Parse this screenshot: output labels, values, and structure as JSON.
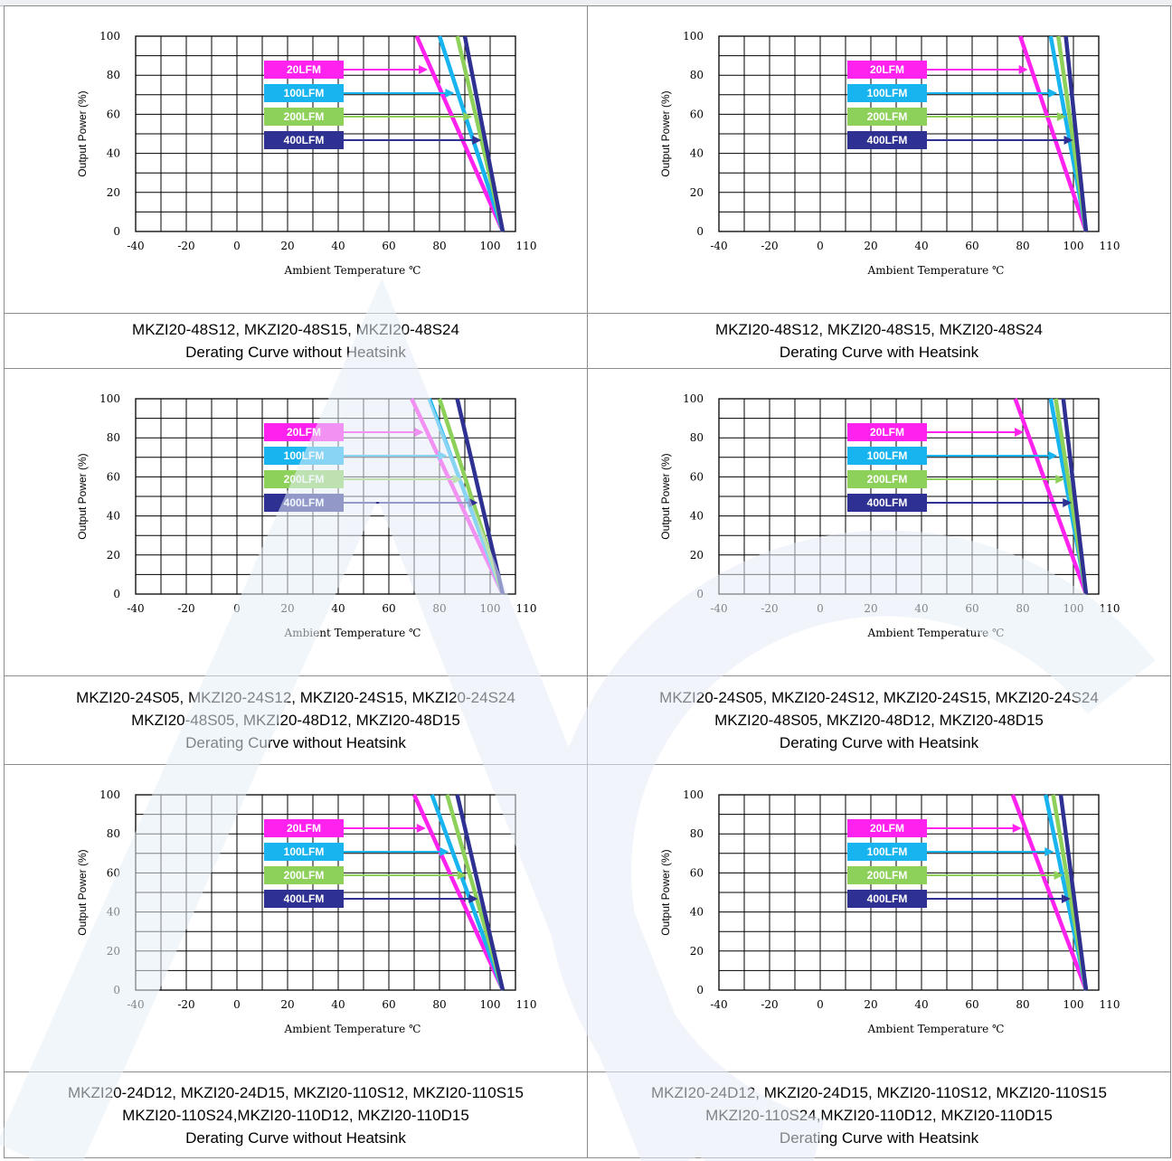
{
  "colors": {
    "20LFM": "#ff22ee",
    "100LFM": "#17b4ef",
    "200LFM": "#8dd05a",
    "400LFM": "#2e3191"
  },
  "chart_data": [
    {
      "type": "line",
      "title": "",
      "xlabel": "Ambient Temperature ℃",
      "ylabel": "Output Power (%)",
      "x_ticks": [
        "-40",
        "-20",
        "0",
        "20",
        "40",
        "60",
        "80",
        "100",
        "110"
      ],
      "y_ticks": [
        "0",
        "20",
        "40",
        "60",
        "80",
        "100"
      ],
      "xlim": [
        -40,
        110
      ],
      "ylim": [
        0,
        100
      ],
      "grid": true,
      "legend_position": "top-center",
      "series": [
        {
          "name": "20LFM",
          "color": "#ff22ee",
          "points": [
            [
              71,
              100
            ],
            [
              105,
              0
            ]
          ]
        },
        {
          "name": "100LFM",
          "color": "#17b4ef",
          "points": [
            [
              80,
              100
            ],
            [
              105,
              0
            ]
          ]
        },
        {
          "name": "200LFM",
          "color": "#8dd05a",
          "points": [
            [
              87,
              100
            ],
            [
              105,
              0
            ]
          ]
        },
        {
          "name": "400LFM",
          "color": "#2e3191",
          "points": [
            [
              90,
              100
            ],
            [
              105,
              0
            ]
          ]
        }
      ]
    },
    {
      "type": "line",
      "title": "",
      "xlabel": "Ambient Temperature ℃",
      "ylabel": "Output Power (%)",
      "x_ticks": [
        "-40",
        "-20",
        "0",
        "20",
        "40",
        "60",
        "80",
        "100",
        "110"
      ],
      "y_ticks": [
        "0",
        "20",
        "40",
        "60",
        "80",
        "100"
      ],
      "xlim": [
        -40,
        110
      ],
      "ylim": [
        0,
        100
      ],
      "grid": true,
      "legend_position": "top-center",
      "series": [
        {
          "name": "20LFM",
          "color": "#ff22ee",
          "points": [
            [
              79,
              100
            ],
            [
              105,
              0
            ]
          ]
        },
        {
          "name": "100LFM",
          "color": "#17b4ef",
          "points": [
            [
              91,
              100
            ],
            [
              105,
              0
            ]
          ]
        },
        {
          "name": "200LFM",
          "color": "#8dd05a",
          "points": [
            [
              94,
              100
            ],
            [
              105,
              0
            ]
          ]
        },
        {
          "name": "400LFM",
          "color": "#2e3191",
          "points": [
            [
              97,
              100
            ],
            [
              105,
              0
            ]
          ]
        }
      ]
    },
    {
      "type": "line",
      "title": "",
      "xlabel": "Ambient Temperature ℃",
      "ylabel": "Output Power (%)",
      "x_ticks": [
        "-40",
        "-20",
        "0",
        "20",
        "40",
        "60",
        "80",
        "100",
        "110"
      ],
      "y_ticks": [
        "0",
        "20",
        "40",
        "60",
        "80",
        "100"
      ],
      "xlim": [
        -40,
        110
      ],
      "ylim": [
        0,
        100
      ],
      "grid": true,
      "legend_position": "top-center",
      "series": [
        {
          "name": "20LFM",
          "color": "#ff22ee",
          "points": [
            [
              69,
              100
            ],
            [
              105,
              0
            ]
          ]
        },
        {
          "name": "100LFM",
          "color": "#17b4ef",
          "points": [
            [
              76,
              100
            ],
            [
              105,
              0
            ]
          ]
        },
        {
          "name": "200LFM",
          "color": "#8dd05a",
          "points": [
            [
              80,
              100
            ],
            [
              105,
              0
            ]
          ]
        },
        {
          "name": "400LFM",
          "color": "#2e3191",
          "points": [
            [
              87,
              100
            ],
            [
              105,
              0
            ]
          ]
        }
      ]
    },
    {
      "type": "line",
      "title": "",
      "xlabel": "Ambient Temperature ℃",
      "ylabel": "Output Power (%)",
      "x_ticks": [
        "-40",
        "-20",
        "0",
        "20",
        "40",
        "60",
        "80",
        "100",
        "110"
      ],
      "y_ticks": [
        "0",
        "20",
        "40",
        "60",
        "80",
        "100"
      ],
      "xlim": [
        -40,
        110
      ],
      "ylim": [
        0,
        100
      ],
      "grid": true,
      "legend_position": "top-center",
      "series": [
        {
          "name": "20LFM",
          "color": "#ff22ee",
          "points": [
            [
              77,
              100
            ],
            [
              105,
              0
            ]
          ]
        },
        {
          "name": "100LFM",
          "color": "#17b4ef",
          "points": [
            [
              91,
              100
            ],
            [
              105,
              0
            ]
          ]
        },
        {
          "name": "200LFM",
          "color": "#8dd05a",
          "points": [
            [
              93,
              100
            ],
            [
              105,
              0
            ]
          ]
        },
        {
          "name": "400LFM",
          "color": "#2e3191",
          "points": [
            [
              96,
              100
            ],
            [
              105,
              0
            ]
          ]
        }
      ]
    },
    {
      "type": "line",
      "title": "",
      "xlabel": "Ambient Temperature ℃",
      "ylabel": "Output Power (%)",
      "x_ticks": [
        "-40",
        "-20",
        "0",
        "20",
        "40",
        "60",
        "80",
        "100",
        "110"
      ],
      "y_ticks": [
        "0",
        "20",
        "40",
        "60",
        "80",
        "100"
      ],
      "xlim": [
        -40,
        110
      ],
      "ylim": [
        0,
        100
      ],
      "grid": true,
      "legend_position": "top-center",
      "series": [
        {
          "name": "20LFM",
          "color": "#ff22ee",
          "points": [
            [
              70,
              100
            ],
            [
              105,
              0
            ]
          ]
        },
        {
          "name": "100LFM",
          "color": "#17b4ef",
          "points": [
            [
              77,
              100
            ],
            [
              105,
              0
            ]
          ]
        },
        {
          "name": "200LFM",
          "color": "#8dd05a",
          "points": [
            [
              83,
              100
            ],
            [
              105,
              0
            ]
          ]
        },
        {
          "name": "400LFM",
          "color": "#2e3191",
          "points": [
            [
              87,
              100
            ],
            [
              105,
              0
            ]
          ]
        }
      ]
    },
    {
      "type": "line",
      "title": "",
      "xlabel": "Ambient Temperature ℃",
      "ylabel": "Output Power (%)",
      "x_ticks": [
        "-40",
        "-20",
        "0",
        "20",
        "40",
        "60",
        "80",
        "100",
        "110"
      ],
      "y_ticks": [
        "0",
        "20",
        "40",
        "60",
        "80",
        "100"
      ],
      "xlim": [
        -40,
        110
      ],
      "ylim": [
        0,
        100
      ],
      "grid": true,
      "legend_position": "top-center",
      "series": [
        {
          "name": "20LFM",
          "color": "#ff22ee",
          "points": [
            [
              76,
              100
            ],
            [
              105,
              0
            ]
          ]
        },
        {
          "name": "100LFM",
          "color": "#17b4ef",
          "points": [
            [
              89,
              100
            ],
            [
              105,
              0
            ]
          ]
        },
        {
          "name": "200LFM",
          "color": "#8dd05a",
          "points": [
            [
              92,
              100
            ],
            [
              105,
              0
            ]
          ]
        },
        {
          "name": "400LFM",
          "color": "#2e3191",
          "points": [
            [
              95,
              100
            ],
            [
              105,
              0
            ]
          ]
        }
      ]
    }
  ],
  "captions": [
    [
      "MKZI20-48S12, MKZI20-48S15, MKZI20-48S24",
      "Derating Curve without Heatsink"
    ],
    [
      "MKZI20-48S12, MKZI20-48S15, MKZI20-48S24",
      "Derating Curve with Heatsink"
    ],
    [
      "MKZI20-24S05, MKZI20-24S12, MKZI20-24S15, MKZI20-24S24",
      "MKZI20-48S05, MKZI20-48D12, MKZI20-48D15",
      "Derating Curve without Heatsink"
    ],
    [
      "MKZI20-24S05, MKZI20-24S12, MKZI20-24S15, MKZI20-24S24",
      "MKZI20-48S05, MKZI20-48D12, MKZI20-48D15",
      "Derating Curve with Heatsink"
    ],
    [
      "MKZI20-24D12, MKZI20-24D15, MKZI20-110S12, MKZI20-110S15",
      "MKZI20-110S24,MKZI20-110D12, MKZI20-110D15",
      "Derating Curve without Heatsink"
    ],
    [
      "MKZI20-24D12, MKZI20-24D15, MKZI20-110S12, MKZI20-110S15",
      "MKZI20-110S24,MKZI20-110D12, MKZI20-110D15",
      "Derating Curve with Heatsink"
    ]
  ],
  "watermark_icon": "company-logo-watermark"
}
